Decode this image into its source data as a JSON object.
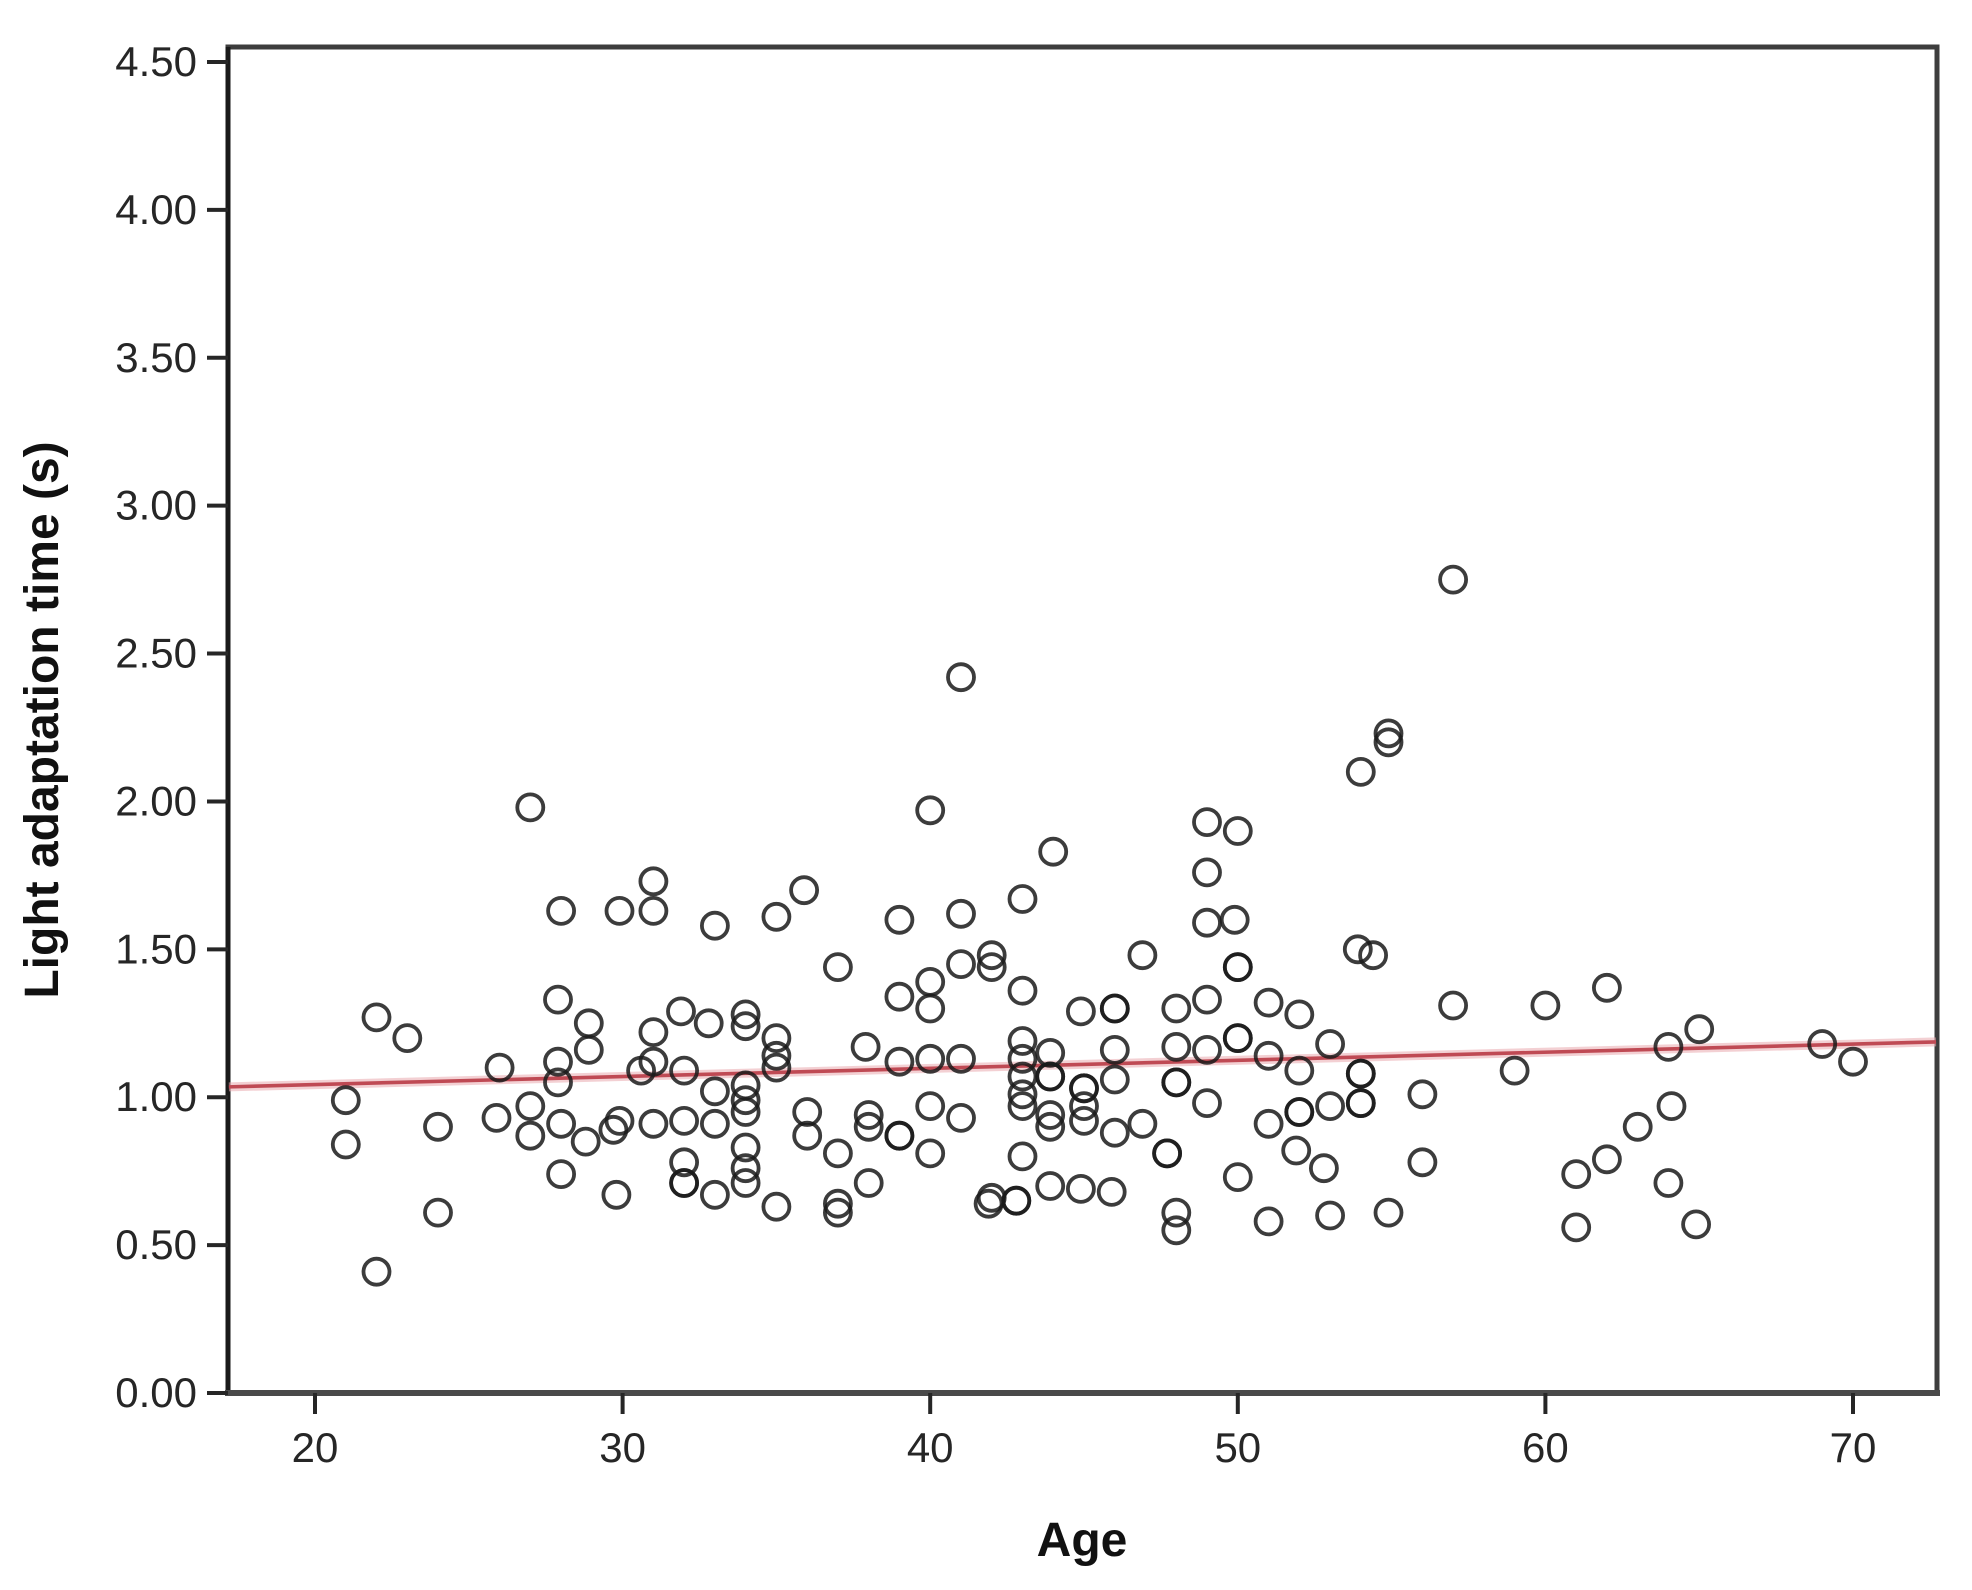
{
  "chart_data": {
    "type": "scatter",
    "title": "",
    "xlabel": "Age",
    "ylabel": "Light adaptation time (s)",
    "xlim": [
      17.2,
      72.7
    ],
    "ylim": [
      0.0,
      4.55
    ],
    "grid": false,
    "legend": "none",
    "x_ticks": [
      {
        "v": 20,
        "label": "20"
      },
      {
        "v": 30,
        "label": "30"
      },
      {
        "v": 40,
        "label": "40"
      },
      {
        "v": 50,
        "label": "50"
      },
      {
        "v": 60,
        "label": "60"
      },
      {
        "v": 70,
        "label": "70"
      }
    ],
    "y_ticks": [
      {
        "v": 0.0,
        "label": "0.00"
      },
      {
        "v": 0.5,
        "label": "0.50"
      },
      {
        "v": 1.0,
        "label": "1.00"
      },
      {
        "v": 1.5,
        "label": "1.50"
      },
      {
        "v": 2.0,
        "label": "2.00"
      },
      {
        "v": 2.5,
        "label": "2.50"
      },
      {
        "v": 3.0,
        "label": "3.00"
      },
      {
        "v": 3.5,
        "label": "3.50"
      },
      {
        "v": 4.0,
        "label": "4.00"
      },
      {
        "v": 4.5,
        "label": "4.50"
      }
    ],
    "marker": {
      "shape": "open-circle",
      "stroke_color": "#1a1a1a",
      "fill": "none"
    },
    "trendline": {
      "type": "linear-fit",
      "color": "#bf4a54",
      "glow_color": "#e9a9ae",
      "endpoints": [
        [
          17.2,
          1.035
        ],
        [
          72.7,
          1.187
        ]
      ]
    },
    "frame_color": "#3d3d3d",
    "points": [
      [
        21,
        0.99
      ],
      [
        21,
        0.84
      ],
      [
        22,
        1.27
      ],
      [
        22,
        0.41
      ],
      [
        23,
        1.2
      ],
      [
        24,
        0.9
      ],
      [
        24,
        0.61
      ],
      [
        25.9,
        0.93
      ],
      [
        26,
        1.1
      ],
      [
        27,
        1.98
      ],
      [
        27,
        0.97
      ],
      [
        27,
        0.87
      ],
      [
        27.9,
        1.33
      ],
      [
        27.9,
        1.12
      ],
      [
        27.9,
        1.05
      ],
      [
        28,
        1.63
      ],
      [
        28,
        0.91
      ],
      [
        28,
        0.74
      ],
      [
        28.9,
        1.25
      ],
      [
        28.9,
        1.16
      ],
      [
        28.8,
        0.85
      ],
      [
        29.7,
        0.89
      ],
      [
        29.8,
        0.67
      ],
      [
        29.9,
        1.63
      ],
      [
        30.6,
        1.09
      ],
      [
        29.9,
        0.92
      ],
      [
        31,
        1.73
      ],
      [
        31,
        1.63
      ],
      [
        31,
        1.22
      ],
      [
        31,
        1.12
      ],
      [
        31,
        0.91
      ],
      [
        31.9,
        1.29
      ],
      [
        32,
        1.09
      ],
      [
        32,
        0.92
      ],
      [
        32,
        0.78
      ],
      [
        32,
        0.71
      ],
      [
        32,
        0.71
      ],
      [
        32.8,
        1.25
      ],
      [
        33,
        1.58
      ],
      [
        33,
        1.02
      ],
      [
        33,
        0.91
      ],
      [
        33,
        0.67
      ],
      [
        34,
        1.28
      ],
      [
        34,
        1.24
      ],
      [
        34,
        1.04
      ],
      [
        34,
        0.99
      ],
      [
        34,
        0.95
      ],
      [
        34,
        0.83
      ],
      [
        34,
        0.76
      ],
      [
        34,
        0.71
      ],
      [
        35,
        1.61
      ],
      [
        35,
        1.2
      ],
      [
        35,
        1.14
      ],
      [
        35,
        1.1
      ],
      [
        35,
        0.63
      ],
      [
        35.9,
        1.7
      ],
      [
        36,
        0.95
      ],
      [
        36,
        0.87
      ],
      [
        37,
        1.44
      ],
      [
        37,
        0.81
      ],
      [
        37,
        0.64
      ],
      [
        37,
        0.61
      ],
      [
        37.9,
        1.17
      ],
      [
        38,
        0.94
      ],
      [
        38,
        0.9
      ],
      [
        38,
        0.71
      ],
      [
        39,
        1.6
      ],
      [
        39,
        1.34
      ],
      [
        39,
        1.12
      ],
      [
        39,
        0.87
      ],
      [
        39,
        0.87
      ],
      [
        40,
        1.97
      ],
      [
        40,
        1.39
      ],
      [
        40,
        1.3
      ],
      [
        40,
        1.13
      ],
      [
        40,
        0.97
      ],
      [
        40,
        0.81
      ],
      [
        41,
        2.42
      ],
      [
        41,
        1.62
      ],
      [
        41,
        1.45
      ],
      [
        41,
        1.13
      ],
      [
        41,
        0.93
      ],
      [
        41.9,
        0.64
      ],
      [
        42,
        1.48
      ],
      [
        42,
        1.44
      ],
      [
        42,
        0.66
      ],
      [
        42.8,
        0.65
      ],
      [
        42.8,
        0.65
      ],
      [
        43,
        1.67
      ],
      [
        43,
        1.36
      ],
      [
        43,
        1.19
      ],
      [
        43,
        1.13
      ],
      [
        43,
        1.07
      ],
      [
        43,
        1.01
      ],
      [
        43,
        0.97
      ],
      [
        43,
        0.8
      ],
      [
        43.9,
        1.15
      ],
      [
        43.9,
        1.07
      ],
      [
        43.9,
        1.07
      ],
      [
        43.9,
        0.94
      ],
      [
        43.9,
        0.9
      ],
      [
        43.9,
        0.7
      ],
      [
        44,
        1.83
      ],
      [
        44.9,
        1.29
      ],
      [
        45,
        1.03
      ],
      [
        45,
        1.03
      ],
      [
        45,
        0.97
      ],
      [
        45,
        0.92
      ],
      [
        44.9,
        0.69
      ],
      [
        45.9,
        0.68
      ],
      [
        46,
        1.3
      ],
      [
        46,
        1.3
      ],
      [
        46,
        1.16
      ],
      [
        46,
        1.06
      ],
      [
        46,
        0.88
      ],
      [
        46.9,
        1.48
      ],
      [
        46.9,
        0.91
      ],
      [
        47.7,
        0.81
      ],
      [
        47.7,
        0.81
      ],
      [
        48,
        1.3
      ],
      [
        48,
        1.17
      ],
      [
        48,
        1.05
      ],
      [
        48,
        1.05
      ],
      [
        48,
        0.61
      ],
      [
        48,
        0.55
      ],
      [
        49,
        1.93
      ],
      [
        49,
        1.76
      ],
      [
        49,
        1.59
      ],
      [
        49,
        1.33
      ],
      [
        49,
        1.16
      ],
      [
        49,
        0.98
      ],
      [
        49.9,
        1.6
      ],
      [
        50,
        1.9
      ],
      [
        50,
        1.44
      ],
      [
        50,
        1.44
      ],
      [
        50,
        1.2
      ],
      [
        50,
        1.2
      ],
      [
        50,
        0.73
      ],
      [
        51,
        1.32
      ],
      [
        51,
        1.14
      ],
      [
        51,
        0.91
      ],
      [
        51,
        0.58
      ],
      [
        51.9,
        0.82
      ],
      [
        52,
        1.28
      ],
      [
        52,
        1.09
      ],
      [
        52,
        0.95
      ],
      [
        52,
        0.95
      ],
      [
        52.8,
        0.76
      ],
      [
        53,
        1.18
      ],
      [
        53,
        0.97
      ],
      [
        53,
        0.6
      ],
      [
        53.9,
        1.5
      ],
      [
        54,
        2.1
      ],
      [
        54,
        1.08
      ],
      [
        54,
        1.08
      ],
      [
        54,
        0.98
      ],
      [
        54,
        0.98
      ],
      [
        54.4,
        1.48
      ],
      [
        54.9,
        2.23
      ],
      [
        54.9,
        2.2
      ],
      [
        54.9,
        0.61
      ],
      [
        56,
        1.01
      ],
      [
        56,
        0.78
      ],
      [
        57,
        2.75
      ],
      [
        57,
        1.31
      ],
      [
        59,
        1.09
      ],
      [
        60,
        1.31
      ],
      [
        61,
        0.74
      ],
      [
        61,
        0.56
      ],
      [
        62,
        1.37
      ],
      [
        62,
        0.79
      ],
      [
        63,
        0.9
      ],
      [
        64,
        1.17
      ],
      [
        64,
        0.71
      ],
      [
        64.1,
        0.97
      ],
      [
        64.9,
        0.57
      ],
      [
        65,
        1.23
      ],
      [
        69,
        1.18
      ],
      [
        70,
        1.12
      ]
    ]
  }
}
